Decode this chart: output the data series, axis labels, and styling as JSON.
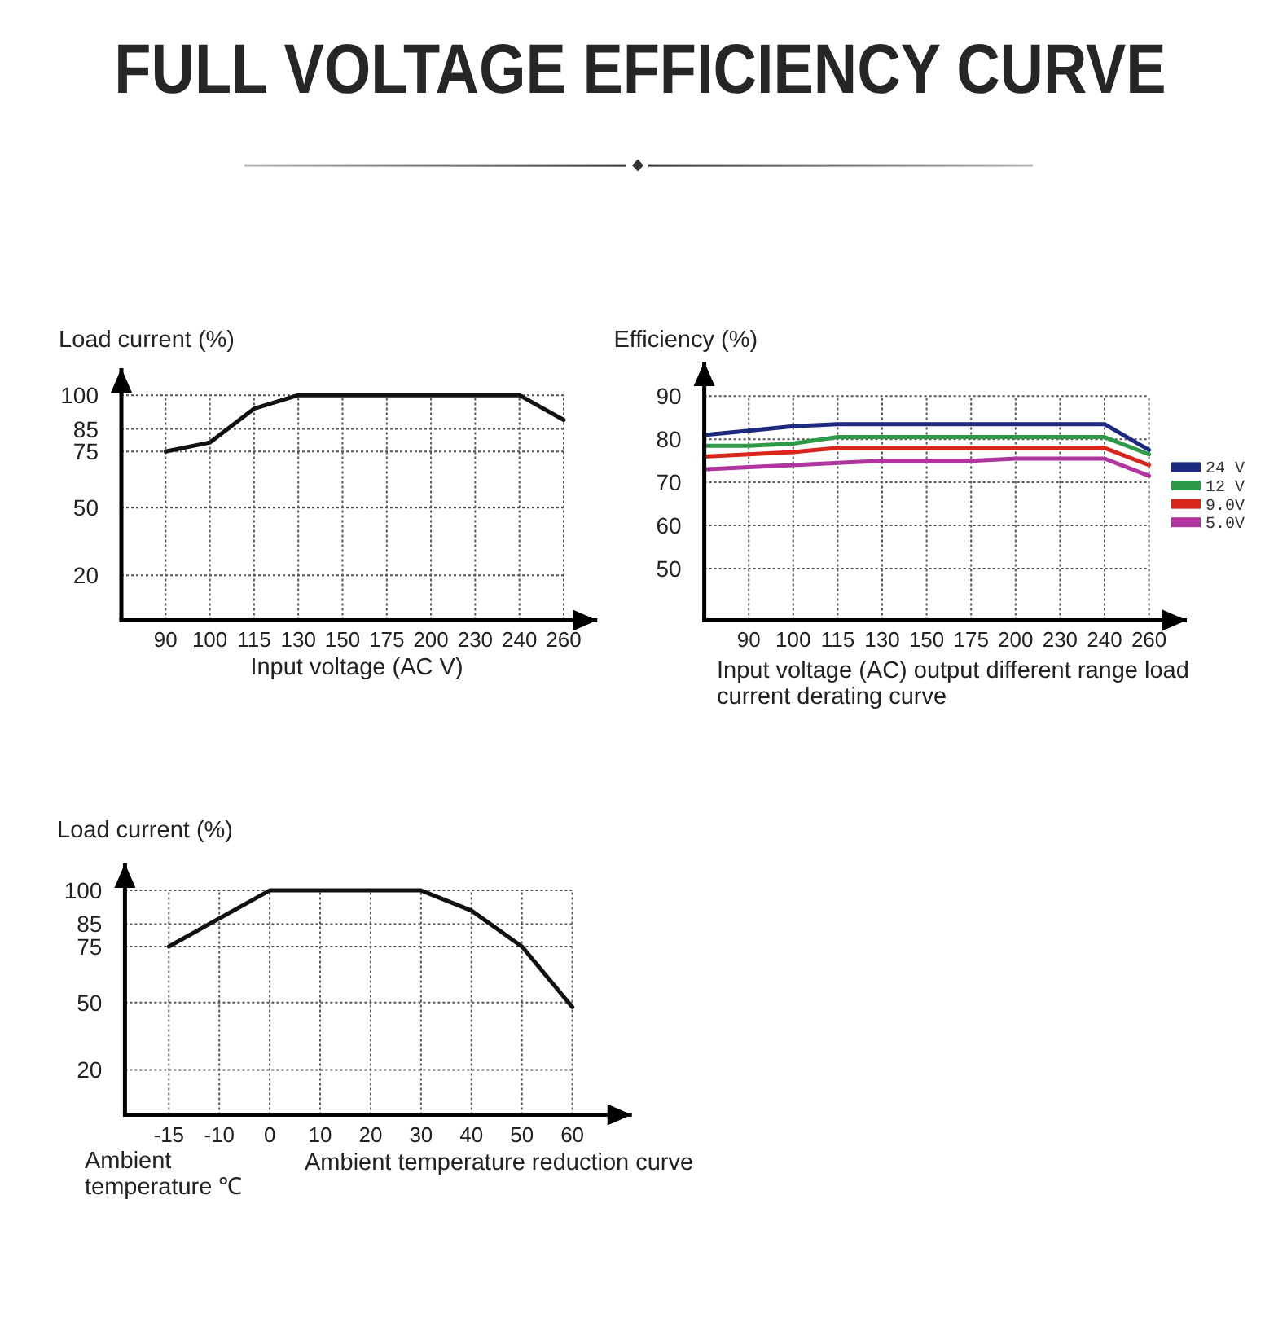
{
  "chart_data": [
    {
      "type": "line",
      "title": "FULL VOLTAGE EFFICIENCY CURVE",
      "xlabel": "Input voltage (AC V)",
      "ylabel": "Load current (%)",
      "categories": [
        "90",
        "100",
        "115",
        "130",
        "150",
        "175",
        "200",
        "230",
        "240",
        "260"
      ],
      "values": [
        75,
        79,
        94,
        100,
        100,
        100,
        100,
        100,
        100,
        89
      ],
      "color": "#111111",
      "ylim": [
        0,
        112
      ],
      "yticks": [
        20,
        50,
        75,
        85,
        100
      ],
      "grid": true
    },
    {
      "type": "line",
      "xlabel": "Input voltage (AC) output different range load current derating curve",
      "ylabel": "Efficiency (%)",
      "categories": [
        null,
        "90",
        "100",
        "115",
        "130",
        "150",
        "175",
        "200",
        "230",
        "240",
        "260"
      ],
      "series": [
        {
          "name": "24 V",
          "color": "#1c2a80",
          "values": [
            81,
            82,
            83,
            83.5,
            83.5,
            83.5,
            83.5,
            83.5,
            83.5,
            83.5,
            77.5
          ]
        },
        {
          "name": "12 V",
          "color": "#2e9a48",
          "values": [
            78.5,
            78.5,
            79,
            80.5,
            80.5,
            80.5,
            80.5,
            80.5,
            80.5,
            80.5,
            76.5
          ]
        },
        {
          "name": "9.0V",
          "color": "#d9261c",
          "values": [
            76,
            76.5,
            77,
            78,
            78,
            78,
            78,
            78,
            78,
            78,
            74
          ]
        },
        {
          "name": "5.0V",
          "color": "#b0359e",
          "values": [
            73,
            73.5,
            74,
            74.5,
            75,
            75,
            75,
            75.5,
            75.5,
            75.5,
            71.5
          ]
        }
      ],
      "ylim": [
        38,
        98
      ],
      "yticks": [
        50,
        60,
        70,
        80,
        90
      ],
      "grid": true,
      "legend": "right"
    },
    {
      "type": "line",
      "xlabel": "Ambient temperature ℃",
      "ylabel": "Load current (%)",
      "annotations": [
        "Ambient temperature reduction curve"
      ],
      "categories": [
        "-15",
        "-10",
        "0",
        "10",
        "20",
        "30",
        "40",
        "50",
        "60"
      ],
      "values": [
        75,
        87.5,
        100,
        100,
        100,
        100,
        91,
        75,
        48
      ],
      "color": "#111111",
      "ylim": [
        0,
        112
      ],
      "yticks": [
        20,
        50,
        75,
        85,
        100
      ],
      "grid": true
    }
  ]
}
